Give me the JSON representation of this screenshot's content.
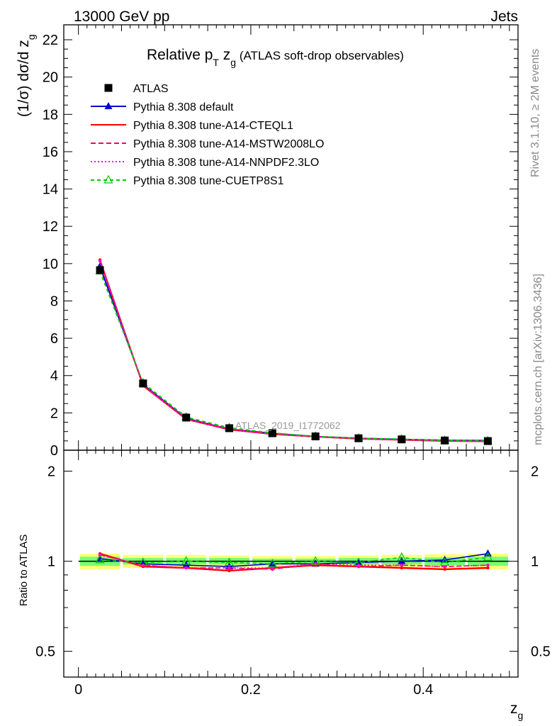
{
  "header": {
    "left": "13000 GeV pp",
    "right": "Jets"
  },
  "side_labels": {
    "rivet": "Rivet 3.1.10, ≥ 2M events",
    "mcplots": "mcplots.cern.ch [arXiv:1306.3436]"
  },
  "title": {
    "pre": "Relative p",
    "sub1": "T",
    "mid": " z",
    "sub2": "g",
    "post": " (ATLAS soft-drop observables)"
  },
  "watermark": "ATLAS_2019_I1772062",
  "ylabel_main": {
    "text": "(1/σ) dσ/d z",
    "sub": "g"
  },
  "ylabel_ratio": "Ratio to ATLAS",
  "xlabel": {
    "text": "z",
    "sub": "g"
  },
  "colors": {
    "data": "#000000",
    "default": "#0000cc",
    "cteql1": "#ff0000",
    "mstw": "#ff0066",
    "nnpdf": "#ff00cc",
    "cuetp8s1": "#00cc00",
    "band_outer": "#ffff77",
    "band_inner": "#77ff77"
  },
  "chart_data": {
    "type": "line",
    "x": [
      0.025,
      0.075,
      0.125,
      0.175,
      0.225,
      0.275,
      0.325,
      0.375,
      0.425,
      0.475
    ],
    "x_edges": [
      0.0,
      0.05,
      0.1,
      0.15,
      0.2,
      0.25,
      0.3,
      0.35,
      0.4,
      0.45,
      0.5
    ],
    "xlim": [
      -0.017,
      0.51
    ],
    "x_ticks": [
      "0",
      "0.2",
      "0.4"
    ],
    "main": {
      "ylim": [
        0,
        22.8
      ],
      "y_ticks": [
        "0",
        "2",
        "4",
        "6",
        "8",
        "10",
        "12",
        "14",
        "16",
        "18",
        "20",
        "22"
      ],
      "log_y": false
    },
    "ratio": {
      "ylim": [
        0.41,
        2.35
      ],
      "y_ticks": [
        "0.5",
        "1",
        "2"
      ],
      "log_y": true,
      "band_inner": [
        0.035,
        0.025,
        0.025,
        0.025,
        0.02,
        0.02,
        0.025,
        0.025,
        0.03,
        0.035
      ],
      "band_outer": [
        0.06,
        0.05,
        0.05,
        0.045,
        0.04,
        0.04,
        0.045,
        0.05,
        0.055,
        0.06
      ]
    },
    "legend_position": "top-left",
    "series": [
      {
        "name": "ATLAS",
        "key": "data",
        "style": "data",
        "values": [
          9.65,
          3.58,
          1.75,
          1.18,
          0.91,
          0.74,
          0.64,
          0.58,
          0.52,
          0.49
        ],
        "ratio": [
          1.0,
          1.0,
          1.0,
          1.0,
          1.0,
          1.0,
          1.0,
          1.0,
          1.0,
          1.0
        ]
      },
      {
        "name": "Pythia 8.308 default",
        "key": "default",
        "style": "solid-triangle",
        "values": [
          9.85,
          3.52,
          1.7,
          1.13,
          0.9,
          0.73,
          0.64,
          0.58,
          0.53,
          0.52
        ],
        "ratio": [
          1.02,
          0.98,
          0.97,
          0.96,
          0.98,
          0.98,
          0.99,
          1.0,
          1.01,
          1.06
        ]
      },
      {
        "name": "Pythia 8.308 tune-A14-CTEQL1",
        "key": "cteql1",
        "style": "solid",
        "values": [
          10.2,
          3.45,
          1.66,
          1.1,
          0.86,
          0.72,
          0.61,
          0.55,
          0.49,
          0.47
        ],
        "ratio": [
          1.06,
          0.96,
          0.95,
          0.93,
          0.95,
          0.97,
          0.96,
          0.95,
          0.94,
          0.95
        ]
      },
      {
        "name": "Pythia 8.308 tune-A14-MSTW2008LO",
        "key": "mstw",
        "style": "dashed",
        "values": [
          10.15,
          3.47,
          1.67,
          1.12,
          0.86,
          0.73,
          0.62,
          0.56,
          0.5,
          0.48
        ],
        "ratio": [
          1.05,
          0.97,
          0.95,
          0.95,
          0.94,
          0.98,
          0.96,
          0.97,
          0.96,
          0.97
        ]
      },
      {
        "name": "Pythia 8.308 tune-A14-NNPDF2.3LO",
        "key": "nnpdf",
        "style": "dotted",
        "values": [
          10.15,
          3.48,
          1.67,
          1.12,
          0.87,
          0.73,
          0.62,
          0.56,
          0.5,
          0.48
        ],
        "ratio": [
          1.05,
          0.97,
          0.95,
          0.95,
          0.95,
          0.98,
          0.97,
          0.97,
          0.96,
          0.97
        ]
      },
      {
        "name": "Pythia 8.308 tune-CUETP8S1",
        "key": "cuetp8s1",
        "style": "dashed-triangle",
        "values": [
          9.6,
          3.6,
          1.77,
          1.2,
          0.92,
          0.74,
          0.64,
          0.59,
          0.52,
          0.5
        ],
        "ratio": [
          1.01,
          0.99,
          1.0,
          0.99,
          0.98,
          1.0,
          0.99,
          1.03,
          0.99,
          1.03
        ]
      }
    ]
  }
}
